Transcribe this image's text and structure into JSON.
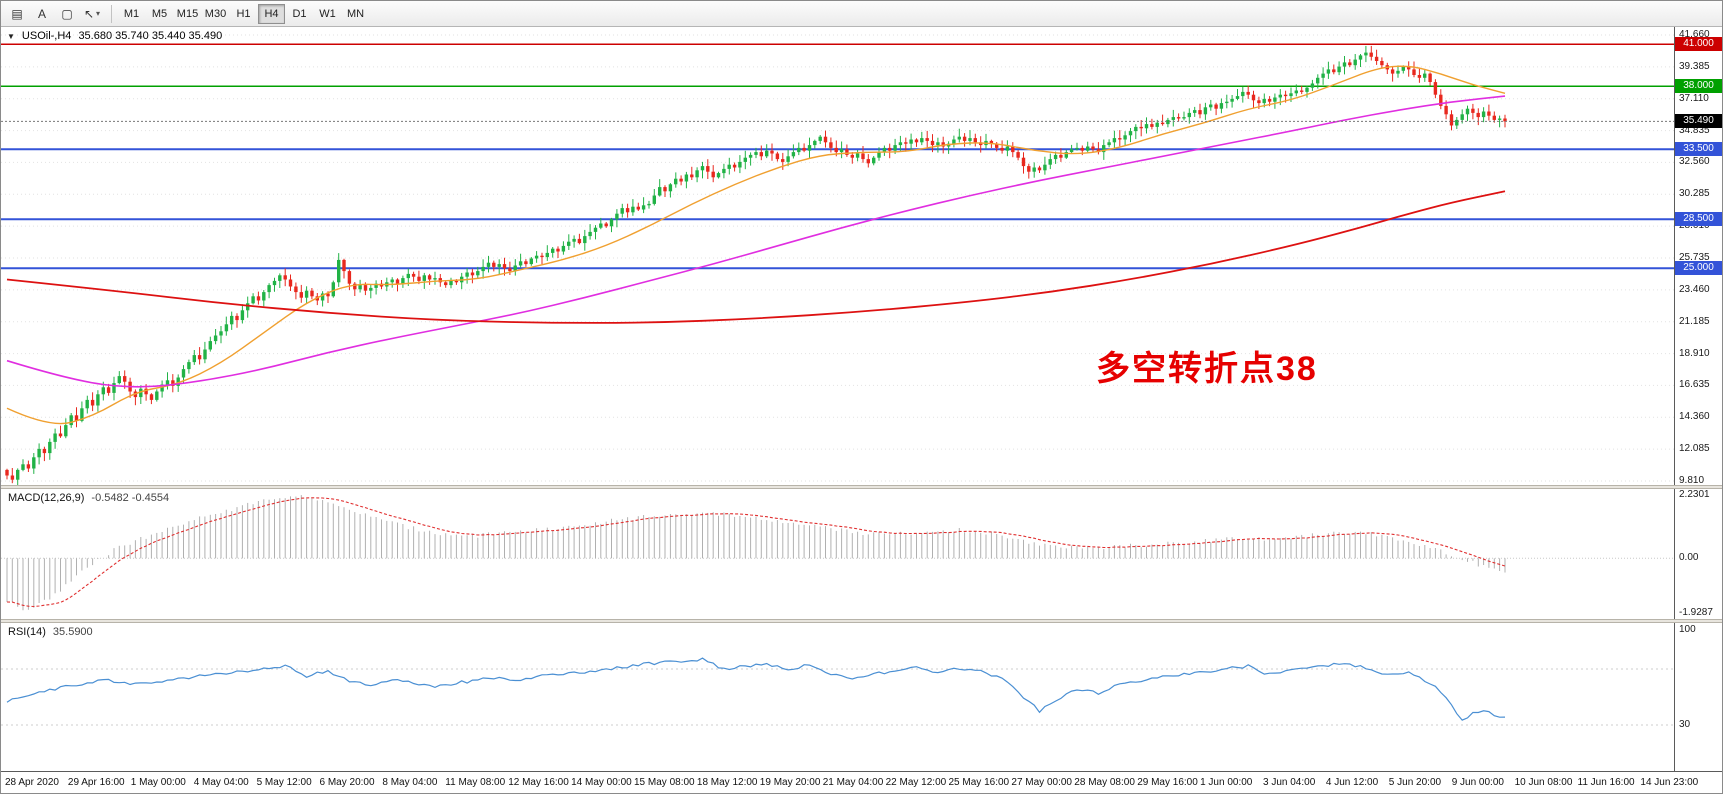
{
  "toolbar": {
    "tools": [
      {
        "button": "templates-button",
        "icon": "grid-icon",
        "glyph": "▤"
      },
      {
        "button": "text-tool-button",
        "icon": "text-icon",
        "glyph": "A"
      },
      {
        "button": "shapes-tool-button",
        "icon": "rect-icon",
        "glyph": "▢"
      },
      {
        "button": "cursor-tool-button",
        "icon": "cursor-icon",
        "glyph": "↖",
        "dropdown": "▾"
      }
    ],
    "timeframes": [
      {
        "label": "M1"
      },
      {
        "label": "M5"
      },
      {
        "label": "M15"
      },
      {
        "label": "M30"
      },
      {
        "label": "H1"
      },
      {
        "label": "H4",
        "active": true
      },
      {
        "label": "D1"
      },
      {
        "label": "W1"
      },
      {
        "label": "MN"
      }
    ]
  },
  "main_chart": {
    "collapse_glyph": "▼",
    "symbol": "USOil-,H4",
    "ohlc": "35.680 35.740 35.440 35.490",
    "annotation": {
      "text": "多空转折点38",
      "color": "#e60000"
    },
    "axis_labels": [
      "41.660",
      "39.385",
      "37.110",
      "34.835",
      "32.560",
      "30.285",
      "28.010",
      "25.735",
      "23.460",
      "21.185",
      "18.910",
      "16.635",
      "14.360",
      "12.085",
      "9.810"
    ],
    "price_lines": [
      {
        "price": 41.0,
        "label": "41.000",
        "color": "#cc0000",
        "width": 1.5
      },
      {
        "price": 38.0,
        "label": "38.000",
        "color": "#00a000",
        "width": 1.5
      },
      {
        "price": 33.5,
        "label": "33.500",
        "color": "#3353d8",
        "width": 2
      },
      {
        "price": 28.5,
        "label": "28.500",
        "color": "#3353d8",
        "width": 2
      },
      {
        "price": 25.0,
        "label": "25.000",
        "color": "#3353d8",
        "width": 2
      }
    ],
    "current_price": {
      "price": 35.49,
      "label": "35.490",
      "color": "#000000"
    }
  },
  "macd_panel": {
    "title": "MACD(12,26,9)",
    "values": "-0.5482 -0.4554",
    "axis_labels": [
      {
        "v": 2.2301,
        "label": "2.2301"
      },
      {
        "v": 0,
        "label": "0.00"
      },
      {
        "v": -1.9287,
        "label": "-1.9287"
      }
    ]
  },
  "rsi_panel": {
    "title": "RSI(14)",
    "value": "35.5900",
    "axis_labels": [
      {
        "v": 100,
        "label": "100"
      },
      {
        "v": 30,
        "label": "30"
      }
    ],
    "levels": [
      70,
      30
    ]
  },
  "chart_data": {
    "type": "candlestick",
    "symbol": "USOil-",
    "timeframe": "H4",
    "ohlc_display": {
      "open": 35.68,
      "high": 35.74,
      "low": 35.44,
      "close": 35.49
    },
    "main": {
      "ylim": [
        9.81,
        41.66
      ],
      "colors": {
        "up": "#21b246",
        "down": "#e8281e"
      },
      "closes": [
        10.2,
        9.9,
        10.6,
        11.0,
        10.7,
        11.5,
        12.1,
        11.8,
        12.6,
        13.2,
        13.0,
        13.8,
        14.5,
        14.1,
        15.0,
        15.6,
        15.2,
        16.0,
        16.5,
        16.1,
        16.8,
        17.3,
        16.9,
        16.2,
        15.8,
        16.4,
        16.0,
        15.6,
        16.2,
        16.7,
        17.0,
        16.6,
        17.2,
        17.8,
        18.3,
        18.8,
        18.5,
        19.2,
        19.8,
        20.2,
        20.5,
        21.0,
        21.6,
        21.3,
        22.0,
        22.5,
        23.0,
        22.7,
        23.3,
        23.8,
        24.1,
        24.5,
        24.2,
        23.7,
        23.3,
        22.9,
        23.4,
        23.0,
        22.7,
        23.2,
        23.0,
        24.0,
        25.6,
        24.8,
        23.9,
        23.5,
        23.8,
        23.4,
        23.6,
        23.9,
        23.7,
        24.0,
        24.2,
        23.9,
        24.3,
        24.6,
        24.4,
        24.1,
        24.5,
        24.2,
        24.3,
        24.0,
        23.8,
        24.1,
        24.0,
        24.4,
        24.7,
        24.5,
        24.8,
        25.1,
        25.4,
        25.1,
        25.3,
        25.0,
        24.8,
        25.2,
        25.5,
        25.3,
        25.7,
        25.9,
        25.8,
        26.1,
        26.4,
        26.2,
        26.6,
        26.9,
        27.1,
        26.8,
        27.3,
        27.6,
        27.9,
        28.2,
        28.0,
        28.5,
        28.9,
        29.3,
        29.0,
        29.4,
        29.2,
        29.5,
        29.6,
        30.2,
        30.8,
        30.5,
        31.0,
        31.4,
        31.2,
        31.7,
        31.5,
        32.0,
        32.3,
        31.9,
        31.5,
        31.8,
        32.1,
        32.4,
        32.2,
        32.6,
        32.9,
        33.1,
        33.3,
        33.0,
        33.4,
        33.2,
        32.8,
        32.6,
        33.0,
        33.3,
        33.6,
        33.4,
        33.8,
        34.1,
        34.4,
        34.0,
        33.6,
        33.3,
        33.5,
        33.1,
        32.9,
        33.2,
        32.8,
        32.5,
        32.9,
        33.3,
        33.6,
        33.4,
        33.8,
        34.0,
        33.9,
        34.2,
        34.0,
        34.3,
        34.1,
        33.8,
        34.0,
        33.7,
        33.9,
        34.2,
        34.4,
        34.1,
        34.3,
        34.0,
        33.8,
        34.1,
        33.9,
        33.6,
        33.4,
        33.7,
        33.3,
        32.9,
        32.3,
        31.9,
        32.2,
        32.0,
        32.4,
        32.8,
        33.1,
        32.9,
        33.3,
        33.5,
        33.6,
        33.4,
        33.7,
        33.5,
        33.3,
        33.8,
        34.0,
        34.3,
        34.2,
        34.5,
        34.8,
        35.1,
        35.0,
        35.3,
        35.1,
        35.4,
        35.3,
        35.6,
        35.8,
        35.7,
        35.8,
        36.1,
        36.3,
        36.0,
        36.5,
        36.7,
        36.4,
        36.8,
        36.9,
        37.1,
        37.3,
        37.6,
        37.4,
        37.0,
        36.8,
        37.1,
        36.9,
        37.2,
        37.4,
        37.3,
        37.5,
        37.7,
        37.6,
        37.9,
        38.2,
        38.6,
        38.9,
        39.2,
        39.0,
        39.4,
        39.7,
        39.5,
        39.9,
        40.2,
        40.4,
        40.1,
        39.8,
        39.5,
        39.2,
        38.9,
        39.1,
        39.4,
        39.2,
        38.8,
        38.6,
        38.9,
        38.3,
        37.4,
        36.6,
        36.0,
        35.2,
        35.6,
        36.0,
        36.4,
        36.1,
        35.8,
        36.2,
        35.9,
        35.6,
        35.7,
        35.49
      ],
      "ma_lines": [
        {
          "name": "fast-ma-line",
          "color": "#f0a030",
          "width": 1.4,
          "anchors": [
            [
              0,
              15.0
            ],
            [
              8,
              13.6
            ],
            [
              16,
              14.4
            ],
            [
              24,
              16.2
            ],
            [
              32,
              16.7
            ],
            [
              40,
              18.2
            ],
            [
              48,
              20.4
            ],
            [
              56,
              22.6
            ],
            [
              64,
              23.9
            ],
            [
              72,
              23.8
            ],
            [
              80,
              24.1
            ],
            [
              88,
              24.2
            ],
            [
              96,
              24.9
            ],
            [
              104,
              25.6
            ],
            [
              112,
              26.6
            ],
            [
              120,
              28.0
            ],
            [
              128,
              29.6
            ],
            [
              136,
              31.0
            ],
            [
              144,
              32.2
            ],
            [
              152,
              33.1
            ],
            [
              160,
              33.3
            ],
            [
              168,
              33.3
            ],
            [
              176,
              33.9
            ],
            [
              184,
              34.0
            ],
            [
              192,
              33.4
            ],
            [
              200,
              33.1
            ],
            [
              208,
              33.6
            ],
            [
              216,
              34.6
            ],
            [
              224,
              35.4
            ],
            [
              232,
              36.4
            ],
            [
              240,
              37.0
            ],
            [
              248,
              38.1
            ],
            [
              256,
              39.3
            ],
            [
              262,
              39.5
            ],
            [
              268,
              38.9
            ],
            [
              274,
              38.1
            ],
            [
              280,
              37.5
            ]
          ]
        },
        {
          "name": "medium-ma-line",
          "color": "#e02ee0",
          "width": 1.6,
          "anchors": [
            [
              0,
              18.4
            ],
            [
              12,
              17.0
            ],
            [
              24,
              16.4
            ],
            [
              36,
              16.9
            ],
            [
              48,
              17.8
            ],
            [
              60,
              19.0
            ],
            [
              72,
              20.0
            ],
            [
              84,
              20.9
            ],
            [
              96,
              21.8
            ],
            [
              108,
              22.9
            ],
            [
              120,
              24.1
            ],
            [
              132,
              25.3
            ],
            [
              144,
              26.6
            ],
            [
              156,
              27.9
            ],
            [
              168,
              29.1
            ],
            [
              180,
              30.2
            ],
            [
              192,
              31.2
            ],
            [
              204,
              32.1
            ],
            [
              216,
              33.0
            ],
            [
              228,
              33.9
            ],
            [
              240,
              34.8
            ],
            [
              250,
              35.6
            ],
            [
              260,
              36.3
            ],
            [
              270,
              36.9
            ],
            [
              280,
              37.3
            ]
          ]
        },
        {
          "name": "slow-ma-line",
          "color": "#dd1111",
          "width": 1.8,
          "anchors": [
            [
              0,
              24.2
            ],
            [
              20,
              23.4
            ],
            [
              40,
              22.5
            ],
            [
              60,
              21.8
            ],
            [
              80,
              21.3
            ],
            [
              100,
              21.1
            ],
            [
              120,
              21.1
            ],
            [
              140,
              21.4
            ],
            [
              160,
              21.9
            ],
            [
              180,
              22.6
            ],
            [
              195,
              23.3
            ],
            [
              210,
              24.2
            ],
            [
              225,
              25.3
            ],
            [
              240,
              26.6
            ],
            [
              252,
              27.8
            ],
            [
              262,
              28.9
            ],
            [
              270,
              29.7
            ],
            [
              280,
              30.5
            ]
          ]
        }
      ]
    },
    "macd": {
      "ylim": [
        -1.9287,
        2.2301
      ],
      "macd_value": -0.5482,
      "signal_value": -0.4554,
      "histogram_color": "#b0b0b0",
      "signal_color": "#e03030",
      "anchors": [
        [
          0,
          -1.55
        ],
        [
          4,
          -1.85
        ],
        [
          8,
          -1.4
        ],
        [
          14,
          -0.5
        ],
        [
          20,
          0.3
        ],
        [
          28,
          0.9
        ],
        [
          36,
          1.4
        ],
        [
          44,
          1.85
        ],
        [
          50,
          2.1
        ],
        [
          54,
          2.25
        ],
        [
          58,
          2.05
        ],
        [
          64,
          1.7
        ],
        [
          70,
          1.35
        ],
        [
          76,
          1.05
        ],
        [
          82,
          0.85
        ],
        [
          88,
          0.8
        ],
        [
          94,
          0.9
        ],
        [
          100,
          1.0
        ],
        [
          106,
          1.15
        ],
        [
          112,
          1.3
        ],
        [
          118,
          1.45
        ],
        [
          124,
          1.55
        ],
        [
          130,
          1.6
        ],
        [
          136,
          1.5
        ],
        [
          142,
          1.35
        ],
        [
          148,
          1.2
        ],
        [
          154,
          1.05
        ],
        [
          160,
          0.9
        ],
        [
          166,
          0.85
        ],
        [
          172,
          0.95
        ],
        [
          178,
          1.0
        ],
        [
          184,
          0.85
        ],
        [
          190,
          0.6
        ],
        [
          196,
          0.45
        ],
        [
          202,
          0.35
        ],
        [
          208,
          0.4
        ],
        [
          214,
          0.5
        ],
        [
          220,
          0.55
        ],
        [
          226,
          0.65
        ],
        [
          232,
          0.7
        ],
        [
          238,
          0.7
        ],
        [
          244,
          0.8
        ],
        [
          250,
          0.9
        ],
        [
          256,
          0.85
        ],
        [
          260,
          0.7
        ],
        [
          264,
          0.5
        ],
        [
          268,
          0.25
        ],
        [
          272,
          0.0
        ],
        [
          276,
          -0.3
        ],
        [
          280,
          -0.55
        ]
      ]
    },
    "rsi": {
      "ylim": [
        0,
        100
      ],
      "value": 35.59,
      "color": "#4a8fd3",
      "anchors": [
        [
          0,
          47
        ],
        [
          6,
          54
        ],
        [
          12,
          58
        ],
        [
          18,
          62
        ],
        [
          24,
          59
        ],
        [
          30,
          62
        ],
        [
          36,
          65
        ],
        [
          42,
          67
        ],
        [
          48,
          70
        ],
        [
          52,
          72
        ],
        [
          56,
          65
        ],
        [
          60,
          69
        ],
        [
          64,
          61
        ],
        [
          68,
          58
        ],
        [
          72,
          62
        ],
        [
          76,
          60
        ],
        [
          80,
          57
        ],
        [
          84,
          60
        ],
        [
          88,
          62
        ],
        [
          92,
          64
        ],
        [
          96,
          62
        ],
        [
          100,
          65
        ],
        [
          106,
          67
        ],
        [
          112,
          70
        ],
        [
          118,
          73
        ],
        [
          124,
          75
        ],
        [
          130,
          77
        ],
        [
          134,
          70
        ],
        [
          138,
          72
        ],
        [
          142,
          74
        ],
        [
          146,
          69
        ],
        [
          150,
          73
        ],
        [
          154,
          67
        ],
        [
          158,
          63
        ],
        [
          162,
          66
        ],
        [
          166,
          69
        ],
        [
          170,
          71
        ],
        [
          174,
          68
        ],
        [
          178,
          70
        ],
        [
          182,
          69
        ],
        [
          186,
          63
        ],
        [
          190,
          50
        ],
        [
          193,
          40
        ],
        [
          196,
          48
        ],
        [
          200,
          55
        ],
        [
          204,
          53
        ],
        [
          208,
          59
        ],
        [
          212,
          62
        ],
        [
          216,
          64
        ],
        [
          220,
          66
        ],
        [
          224,
          68
        ],
        [
          228,
          70
        ],
        [
          232,
          72
        ],
        [
          235,
          66
        ],
        [
          238,
          68
        ],
        [
          242,
          70
        ],
        [
          246,
          72
        ],
        [
          250,
          74
        ],
        [
          254,
          71
        ],
        [
          258,
          66
        ],
        [
          262,
          68
        ],
        [
          265,
          62
        ],
        [
          268,
          54
        ],
        [
          270,
          44
        ],
        [
          272,
          34
        ],
        [
          274,
          38
        ],
        [
          276,
          41
        ],
        [
          278,
          36
        ],
        [
          280,
          35.6
        ]
      ]
    },
    "x_labels": [
      "28 Apr 2020",
      "29 Apr 16:00",
      "1 May 00:00",
      "4 May 04:00",
      "5 May 12:00",
      "6 May 20:00",
      "8 May 04:00",
      "11 May 08:00",
      "12 May 16:00",
      "14 May 00:00",
      "15 May 08:00",
      "18 May 12:00",
      "19 May 20:00",
      "21 May 04:00",
      "22 May 12:00",
      "25 May 16:00",
      "27 May 00:00",
      "28 May 08:00",
      "29 May 16:00",
      "1 Jun 00:00",
      "3 Jun 04:00",
      "4 Jun 12:00",
      "5 Jun 20:00",
      "9 Jun 00:00",
      "10 Jun 08:00",
      "11 Jun 16:00",
      "14 Jun 23:00"
    ]
  }
}
